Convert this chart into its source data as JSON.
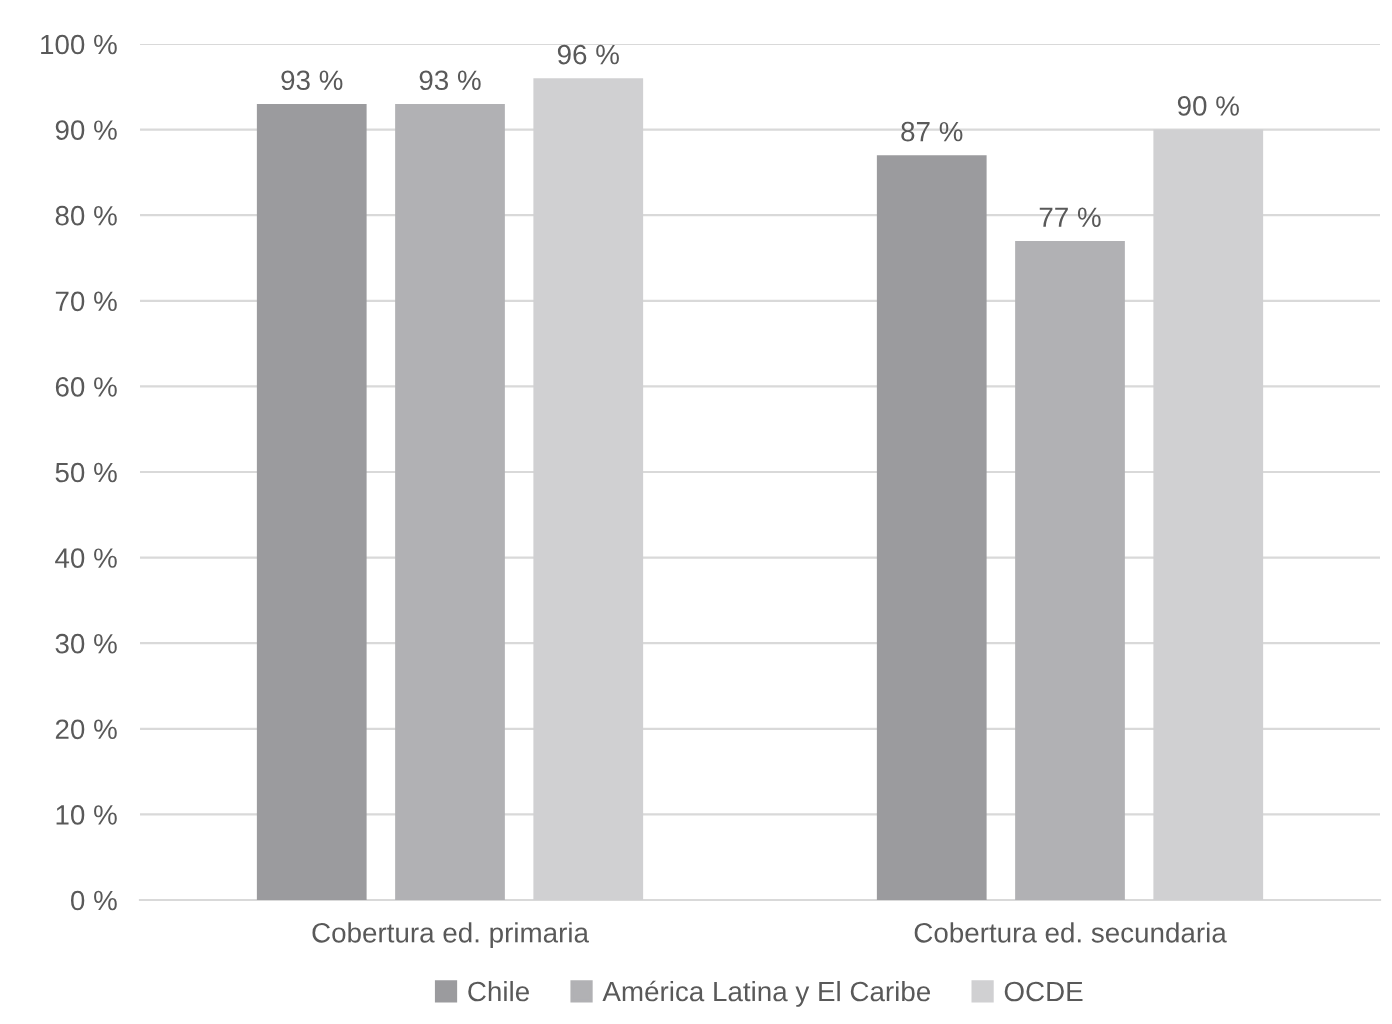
{
  "chart_data": {
    "type": "bar",
    "categories": [
      "Cobertura ed. primaria",
      "Cobertura ed. secundaria"
    ],
    "series": [
      {
        "name": "Chile",
        "color": "#9b9b9e",
        "values": [
          93,
          87
        ],
        "value_labels": [
          "93 %",
          "87 %"
        ]
      },
      {
        "name": "América Latina y El Caribe",
        "color": "#b1b1b4",
        "values": [
          93,
          77
        ],
        "value_labels": [
          "93 %",
          "77 %"
        ]
      },
      {
        "name": "OCDE",
        "color": "#d0d0d2",
        "values": [
          96,
          90
        ],
        "value_labels": [
          "96 %",
          "90 %"
        ]
      }
    ],
    "ylim": [
      0,
      100
    ],
    "yticks": [
      {
        "value": 0,
        "label": "0 %"
      },
      {
        "value": 10,
        "label": "10 %"
      },
      {
        "value": 20,
        "label": "20 %"
      },
      {
        "value": 30,
        "label": "30 %"
      },
      {
        "value": 40,
        "label": "40 %"
      },
      {
        "value": 50,
        "label": "50 %"
      },
      {
        "value": 60,
        "label": "60 %"
      },
      {
        "value": 70,
        "label": "70 %"
      },
      {
        "value": 80,
        "label": "80 %"
      },
      {
        "value": 90,
        "label": "90 %"
      },
      {
        "value": 100,
        "label": "100 %"
      }
    ],
    "grid": "y",
    "legend": "bottom"
  }
}
